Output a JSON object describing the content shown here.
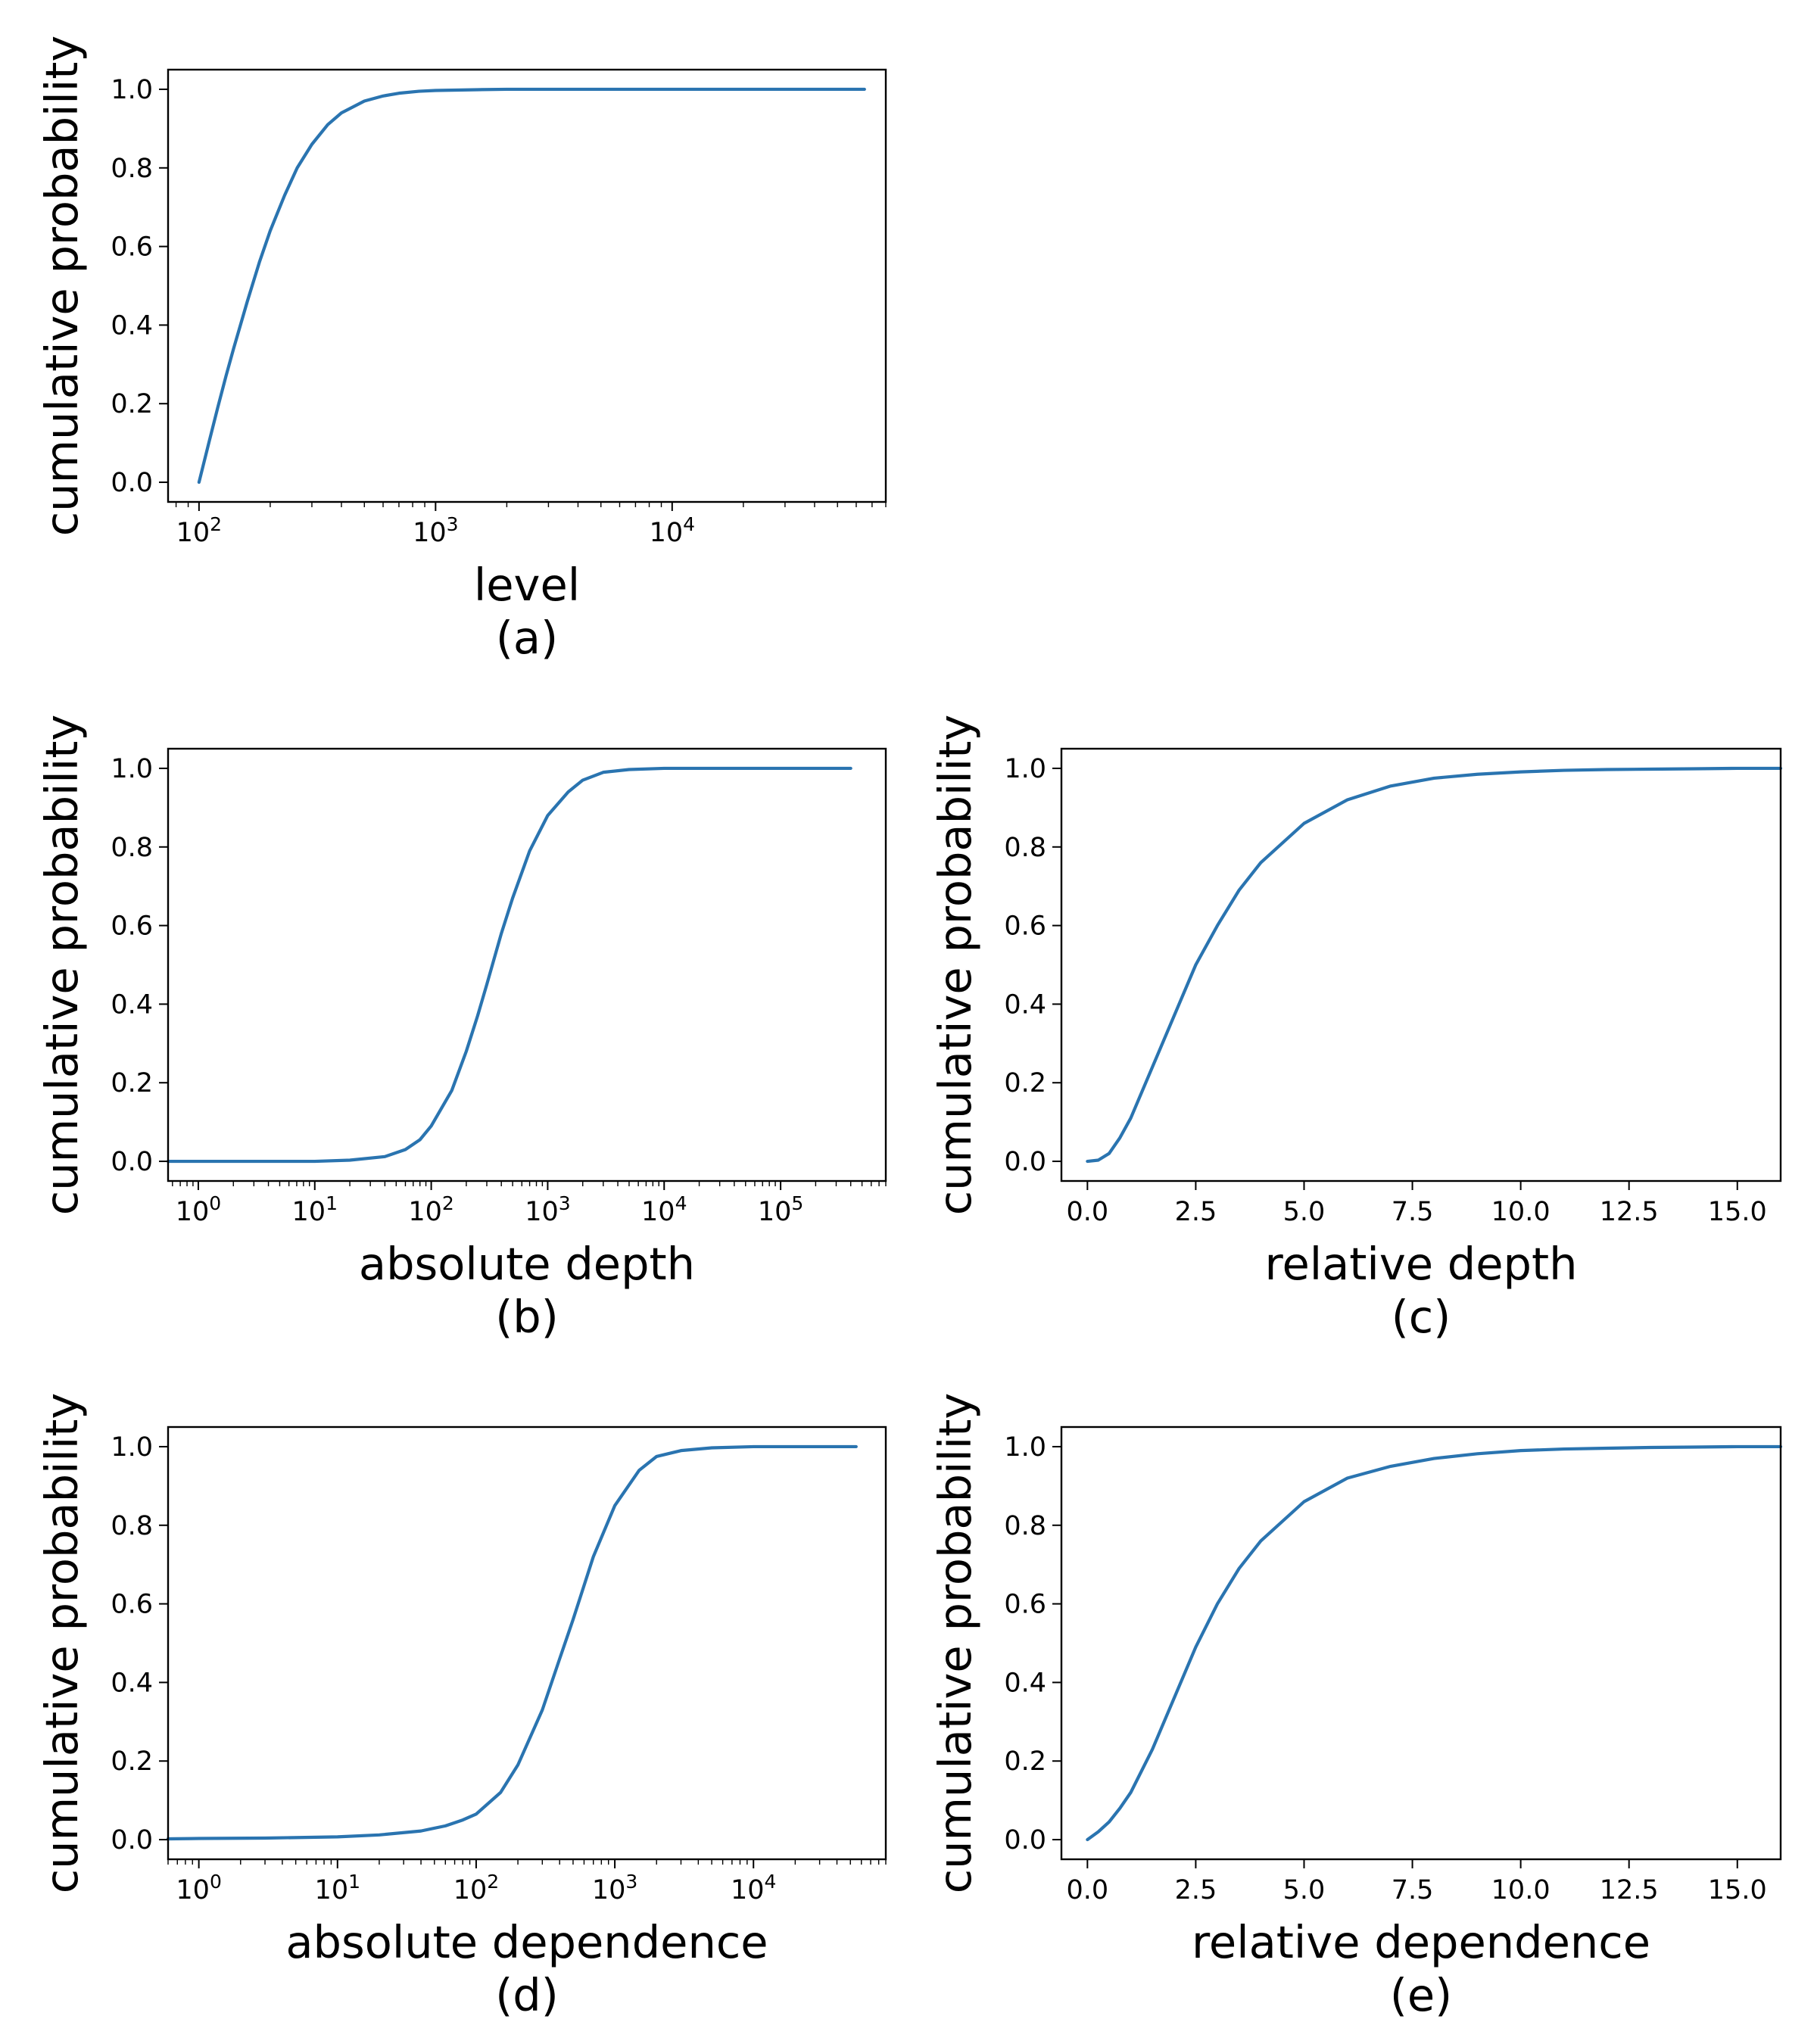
{
  "style": {
    "line_color": "#2a74b0",
    "frame_color": "#000000",
    "background": "#ffffff"
  },
  "chart_data": [
    {
      "panel": "a",
      "type": "line",
      "caption": "(a)",
      "xlabel": "level",
      "ylabel": "cumulative probability",
      "xscale": "log",
      "xlim": [
        74,
        80000
      ],
      "ylim": [
        -0.05,
        1.05
      ],
      "xticks": [
        {
          "value": 100,
          "base": "10",
          "exp": "2"
        },
        {
          "value": 1000,
          "base": "10",
          "exp": "3"
        },
        {
          "value": 10000,
          "base": "10",
          "exp": "4"
        }
      ],
      "yticks": [
        {
          "value": 0,
          "label": "0.0"
        },
        {
          "value": 0.2,
          "label": "0.2"
        },
        {
          "value": 0.4,
          "label": "0.4"
        },
        {
          "value": 0.6,
          "label": "0.6"
        },
        {
          "value": 0.8,
          "label": "0.8"
        },
        {
          "value": 1.0,
          "label": "1.0"
        }
      ],
      "grid": false,
      "series": [
        {
          "x": [
            100,
            110,
            120,
            130,
            140,
            160,
            180,
            200,
            230,
            260,
            300,
            350,
            400,
            500,
            600,
            700,
            850,
            1000,
            1500,
            2000,
            3000,
            5000,
            10000,
            20000,
            40000,
            65000
          ],
          "y": [
            0.0,
            0.1,
            0.19,
            0.27,
            0.34,
            0.46,
            0.56,
            0.64,
            0.73,
            0.8,
            0.86,
            0.91,
            0.94,
            0.97,
            0.983,
            0.99,
            0.995,
            0.997,
            0.999,
            1.0,
            1.0,
            1.0,
            1.0,
            1.0,
            1.0,
            1.0
          ]
        }
      ]
    },
    {
      "panel": "b",
      "type": "line",
      "caption": "(b)",
      "xlabel": "absolute depth",
      "ylabel": "cumulative probability",
      "xscale": "log",
      "xlim": [
        0.55,
        800000
      ],
      "ylim": [
        -0.05,
        1.05
      ],
      "xticks": [
        {
          "value": 1,
          "base": "10",
          "exp": "0"
        },
        {
          "value": 10,
          "base": "10",
          "exp": "1"
        },
        {
          "value": 100,
          "base": "10",
          "exp": "2"
        },
        {
          "value": 1000,
          "base": "10",
          "exp": "3"
        },
        {
          "value": 10000,
          "base": "10",
          "exp": "4"
        },
        {
          "value": 100000,
          "base": "10",
          "exp": "5"
        }
      ],
      "yticks": [
        {
          "value": 0,
          "label": "0.0"
        },
        {
          "value": 0.2,
          "label": "0.2"
        },
        {
          "value": 0.4,
          "label": "0.4"
        },
        {
          "value": 0.6,
          "label": "0.6"
        },
        {
          "value": 0.8,
          "label": "0.8"
        },
        {
          "value": 1.0,
          "label": "1.0"
        }
      ],
      "grid": false,
      "series": [
        {
          "x": [
            0.55,
            1,
            5,
            10,
            20,
            40,
            60,
            80,
            100,
            150,
            200,
            250,
            300,
            400,
            500,
            700,
            1000,
            1500,
            2000,
            3000,
            5000,
            10000,
            100000,
            400000
          ],
          "y": [
            0.0,
            0.0,
            0.0,
            0.0,
            0.003,
            0.012,
            0.03,
            0.055,
            0.09,
            0.18,
            0.28,
            0.37,
            0.45,
            0.58,
            0.67,
            0.79,
            0.88,
            0.94,
            0.97,
            0.99,
            0.997,
            1.0,
            1.0,
            1.0
          ]
        }
      ]
    },
    {
      "panel": "c",
      "type": "line",
      "caption": "(c)",
      "xlabel": "relative depth",
      "ylabel": "cumulative probability",
      "xscale": "linear",
      "xlim": [
        -0.6,
        16.0
      ],
      "ylim": [
        -0.05,
        1.05
      ],
      "xticks": [
        {
          "value": 0,
          "label": "0.0"
        },
        {
          "value": 2.5,
          "label": "2.5"
        },
        {
          "value": 5,
          "label": "5.0"
        },
        {
          "value": 7.5,
          "label": "7.5"
        },
        {
          "value": 10,
          "label": "10.0"
        },
        {
          "value": 12.5,
          "label": "12.5"
        },
        {
          "value": 15,
          "label": "15.0"
        }
      ],
      "yticks": [
        {
          "value": 0,
          "label": "0.0"
        },
        {
          "value": 0.2,
          "label": "0.2"
        },
        {
          "value": 0.4,
          "label": "0.4"
        },
        {
          "value": 0.6,
          "label": "0.6"
        },
        {
          "value": 0.8,
          "label": "0.8"
        },
        {
          "value": 1.0,
          "label": "1.0"
        }
      ],
      "grid": false,
      "series": [
        {
          "x": [
            0,
            0.25,
            0.5,
            0.75,
            1.0,
            1.5,
            2.0,
            2.5,
            3.0,
            3.5,
            4.0,
            5.0,
            6.0,
            7.0,
            8.0,
            9.0,
            10.0,
            11.0,
            12.0,
            13.0,
            14.0,
            15.0,
            16.0
          ],
          "y": [
            0.0,
            0.003,
            0.02,
            0.06,
            0.11,
            0.24,
            0.37,
            0.5,
            0.6,
            0.69,
            0.76,
            0.86,
            0.92,
            0.955,
            0.975,
            0.985,
            0.991,
            0.995,
            0.997,
            0.998,
            0.999,
            1.0,
            1.0
          ]
        }
      ]
    },
    {
      "panel": "d",
      "type": "line",
      "caption": "(d)",
      "xlabel": "absolute dependence",
      "ylabel": "cumulative probability",
      "xscale": "log",
      "xlim": [
        0.6,
        90000
      ],
      "ylim": [
        -0.05,
        1.05
      ],
      "xticks": [
        {
          "value": 1,
          "base": "10",
          "exp": "0"
        },
        {
          "value": 10,
          "base": "10",
          "exp": "1"
        },
        {
          "value": 100,
          "base": "10",
          "exp": "2"
        },
        {
          "value": 1000,
          "base": "10",
          "exp": "3"
        },
        {
          "value": 10000,
          "base": "10",
          "exp": "4"
        }
      ],
      "yticks": [
        {
          "value": 0,
          "label": "0.0"
        },
        {
          "value": 0.2,
          "label": "0.2"
        },
        {
          "value": 0.4,
          "label": "0.4"
        },
        {
          "value": 0.6,
          "label": "0.6"
        },
        {
          "value": 0.8,
          "label": "0.8"
        },
        {
          "value": 1.0,
          "label": "1.0"
        }
      ],
      "grid": false,
      "series": [
        {
          "x": [
            0.6,
            1,
            3,
            10,
            20,
            40,
            60,
            80,
            100,
            150,
            200,
            300,
            400,
            500,
            700,
            1000,
            1500,
            2000,
            3000,
            5000,
            10000,
            55000
          ],
          "y": [
            0.002,
            0.003,
            0.004,
            0.007,
            0.012,
            0.022,
            0.035,
            0.05,
            0.065,
            0.12,
            0.19,
            0.33,
            0.46,
            0.56,
            0.72,
            0.85,
            0.94,
            0.975,
            0.99,
            0.997,
            1.0,
            1.0
          ]
        }
      ]
    },
    {
      "panel": "e",
      "type": "line",
      "caption": "(e)",
      "xlabel": "relative dependence",
      "ylabel": "cumulative probability",
      "xscale": "linear",
      "xlim": [
        -0.6,
        16.0
      ],
      "ylim": [
        -0.05,
        1.05
      ],
      "xticks": [
        {
          "value": 0,
          "label": "0.0"
        },
        {
          "value": 2.5,
          "label": "2.5"
        },
        {
          "value": 5,
          "label": "5.0"
        },
        {
          "value": 7.5,
          "label": "7.5"
        },
        {
          "value": 10,
          "label": "10.0"
        },
        {
          "value": 12.5,
          "label": "12.5"
        },
        {
          "value": 15,
          "label": "15.0"
        }
      ],
      "yticks": [
        {
          "value": 0,
          "label": "0.0"
        },
        {
          "value": 0.2,
          "label": "0.2"
        },
        {
          "value": 0.4,
          "label": "0.4"
        },
        {
          "value": 0.6,
          "label": "0.6"
        },
        {
          "value": 0.8,
          "label": "0.8"
        },
        {
          "value": 1.0,
          "label": "1.0"
        }
      ],
      "grid": false,
      "series": [
        {
          "x": [
            0,
            0.25,
            0.5,
            0.75,
            1.0,
            1.5,
            2.0,
            2.5,
            3.0,
            3.5,
            4.0,
            5.0,
            6.0,
            7.0,
            8.0,
            9.0,
            10.0,
            11.0,
            12.0,
            13.0,
            14.0,
            15.0,
            16.0
          ],
          "y": [
            0.0,
            0.02,
            0.045,
            0.08,
            0.12,
            0.23,
            0.36,
            0.49,
            0.6,
            0.69,
            0.76,
            0.86,
            0.92,
            0.95,
            0.97,
            0.982,
            0.99,
            0.994,
            0.996,
            0.998,
            0.999,
            1.0,
            1.0
          ]
        }
      ]
    }
  ]
}
